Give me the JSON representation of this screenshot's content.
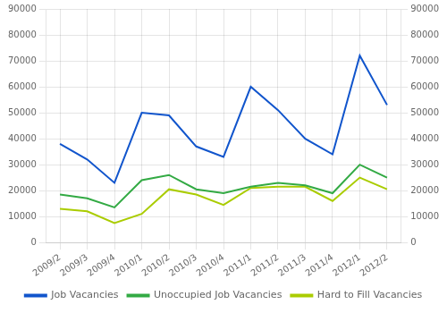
{
  "chart_data": {
    "type": "line",
    "categories": [
      "2009/2",
      "2009/3",
      "2009/4",
      "2010/1",
      "2010/2",
      "2010/3",
      "2010/4",
      "2011/1",
      "2011/2",
      "2011/3",
      "2011/4",
      "2012/1",
      "2012/2"
    ],
    "series": [
      {
        "name": "Job Vacancies",
        "color": "#1155cc",
        "values": [
          38000,
          32000,
          23000,
          50000,
          49000,
          37000,
          33000,
          60000,
          51000,
          40000,
          34000,
          72000,
          53000
        ]
      },
      {
        "name": "Unoccupied Job Vacancies",
        "color": "#33aa44",
        "values": [
          18500,
          17000,
          13500,
          24000,
          26000,
          20500,
          19000,
          21500,
          23000,
          22000,
          19000,
          30000,
          25000
        ]
      },
      {
        "name": "Hard to Fill Vacancies",
        "color": "#aacc00",
        "values": [
          13000,
          12000,
          7500,
          11000,
          20500,
          18500,
          14500,
          21000,
          21500,
          21500,
          16000,
          25000,
          20500
        ]
      }
    ],
    "ylim": [
      0,
      90000
    ],
    "yticks": [
      0,
      10000,
      20000,
      30000,
      40000,
      50000,
      60000,
      70000,
      80000,
      90000
    ],
    "y2lim": [
      0,
      90000
    ],
    "y2ticks": [
      0,
      10000,
      20000,
      30000,
      40000,
      50000,
      60000,
      70000,
      80000,
      90000
    ],
    "grid": true,
    "legend": "bottom"
  }
}
